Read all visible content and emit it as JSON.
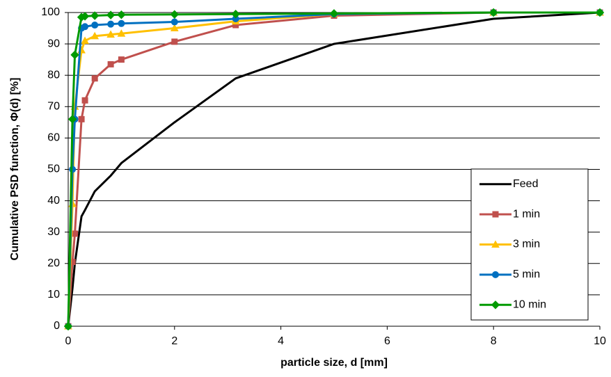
{
  "chart_data": {
    "type": "line",
    "x_label": "particle size, d [mm]",
    "y_label": "Cumulative PSD function, Φ(d) [%]",
    "x": [
      0,
      0.08,
      0.125,
      0.25,
      0.315,
      0.5,
      0.8,
      1,
      2,
      3.15,
      5,
      8,
      10
    ],
    "series": [
      {
        "name": "Feed",
        "color": "#000000",
        "marker": "none",
        "values": [
          0,
          12,
          20,
          35,
          37,
          43,
          48,
          52,
          65,
          79,
          90,
          98,
          100
        ]
      },
      {
        "name": "1 min",
        "color": "#c0504d",
        "marker": "square",
        "values": [
          0,
          20.5,
          29.5,
          66,
          72,
          79,
          83.5,
          85,
          90.7,
          96,
          99,
          100,
          100
        ]
      },
      {
        "name": "3 min",
        "color": "#ffc000",
        "marker": "triangle",
        "values": [
          0,
          39,
          70,
          88,
          91,
          92.5,
          93,
          93.3,
          95,
          97.2,
          99.5,
          100,
          100
        ]
      },
      {
        "name": "5 min",
        "color": "#0070c0",
        "marker": "circle",
        "values": [
          0,
          50,
          66,
          95,
          95.5,
          96,
          96.3,
          96.5,
          97,
          98,
          99.5,
          100,
          100
        ]
      },
      {
        "name": "10 min",
        "color": "#009a00",
        "marker": "diamond",
        "values": [
          0,
          66,
          86.5,
          98.5,
          98.8,
          99,
          99.2,
          99.3,
          99.4,
          99.5,
          99.7,
          100,
          100
        ]
      }
    ],
    "xlim": [
      0,
      10
    ],
    "xticks": [
      0,
      2,
      4,
      6,
      8,
      10
    ],
    "ylim": [
      0,
      100
    ],
    "yticks": [
      0,
      10,
      20,
      30,
      40,
      50,
      60,
      70,
      80,
      90,
      100
    ],
    "grid": true,
    "legend": "lower right"
  }
}
